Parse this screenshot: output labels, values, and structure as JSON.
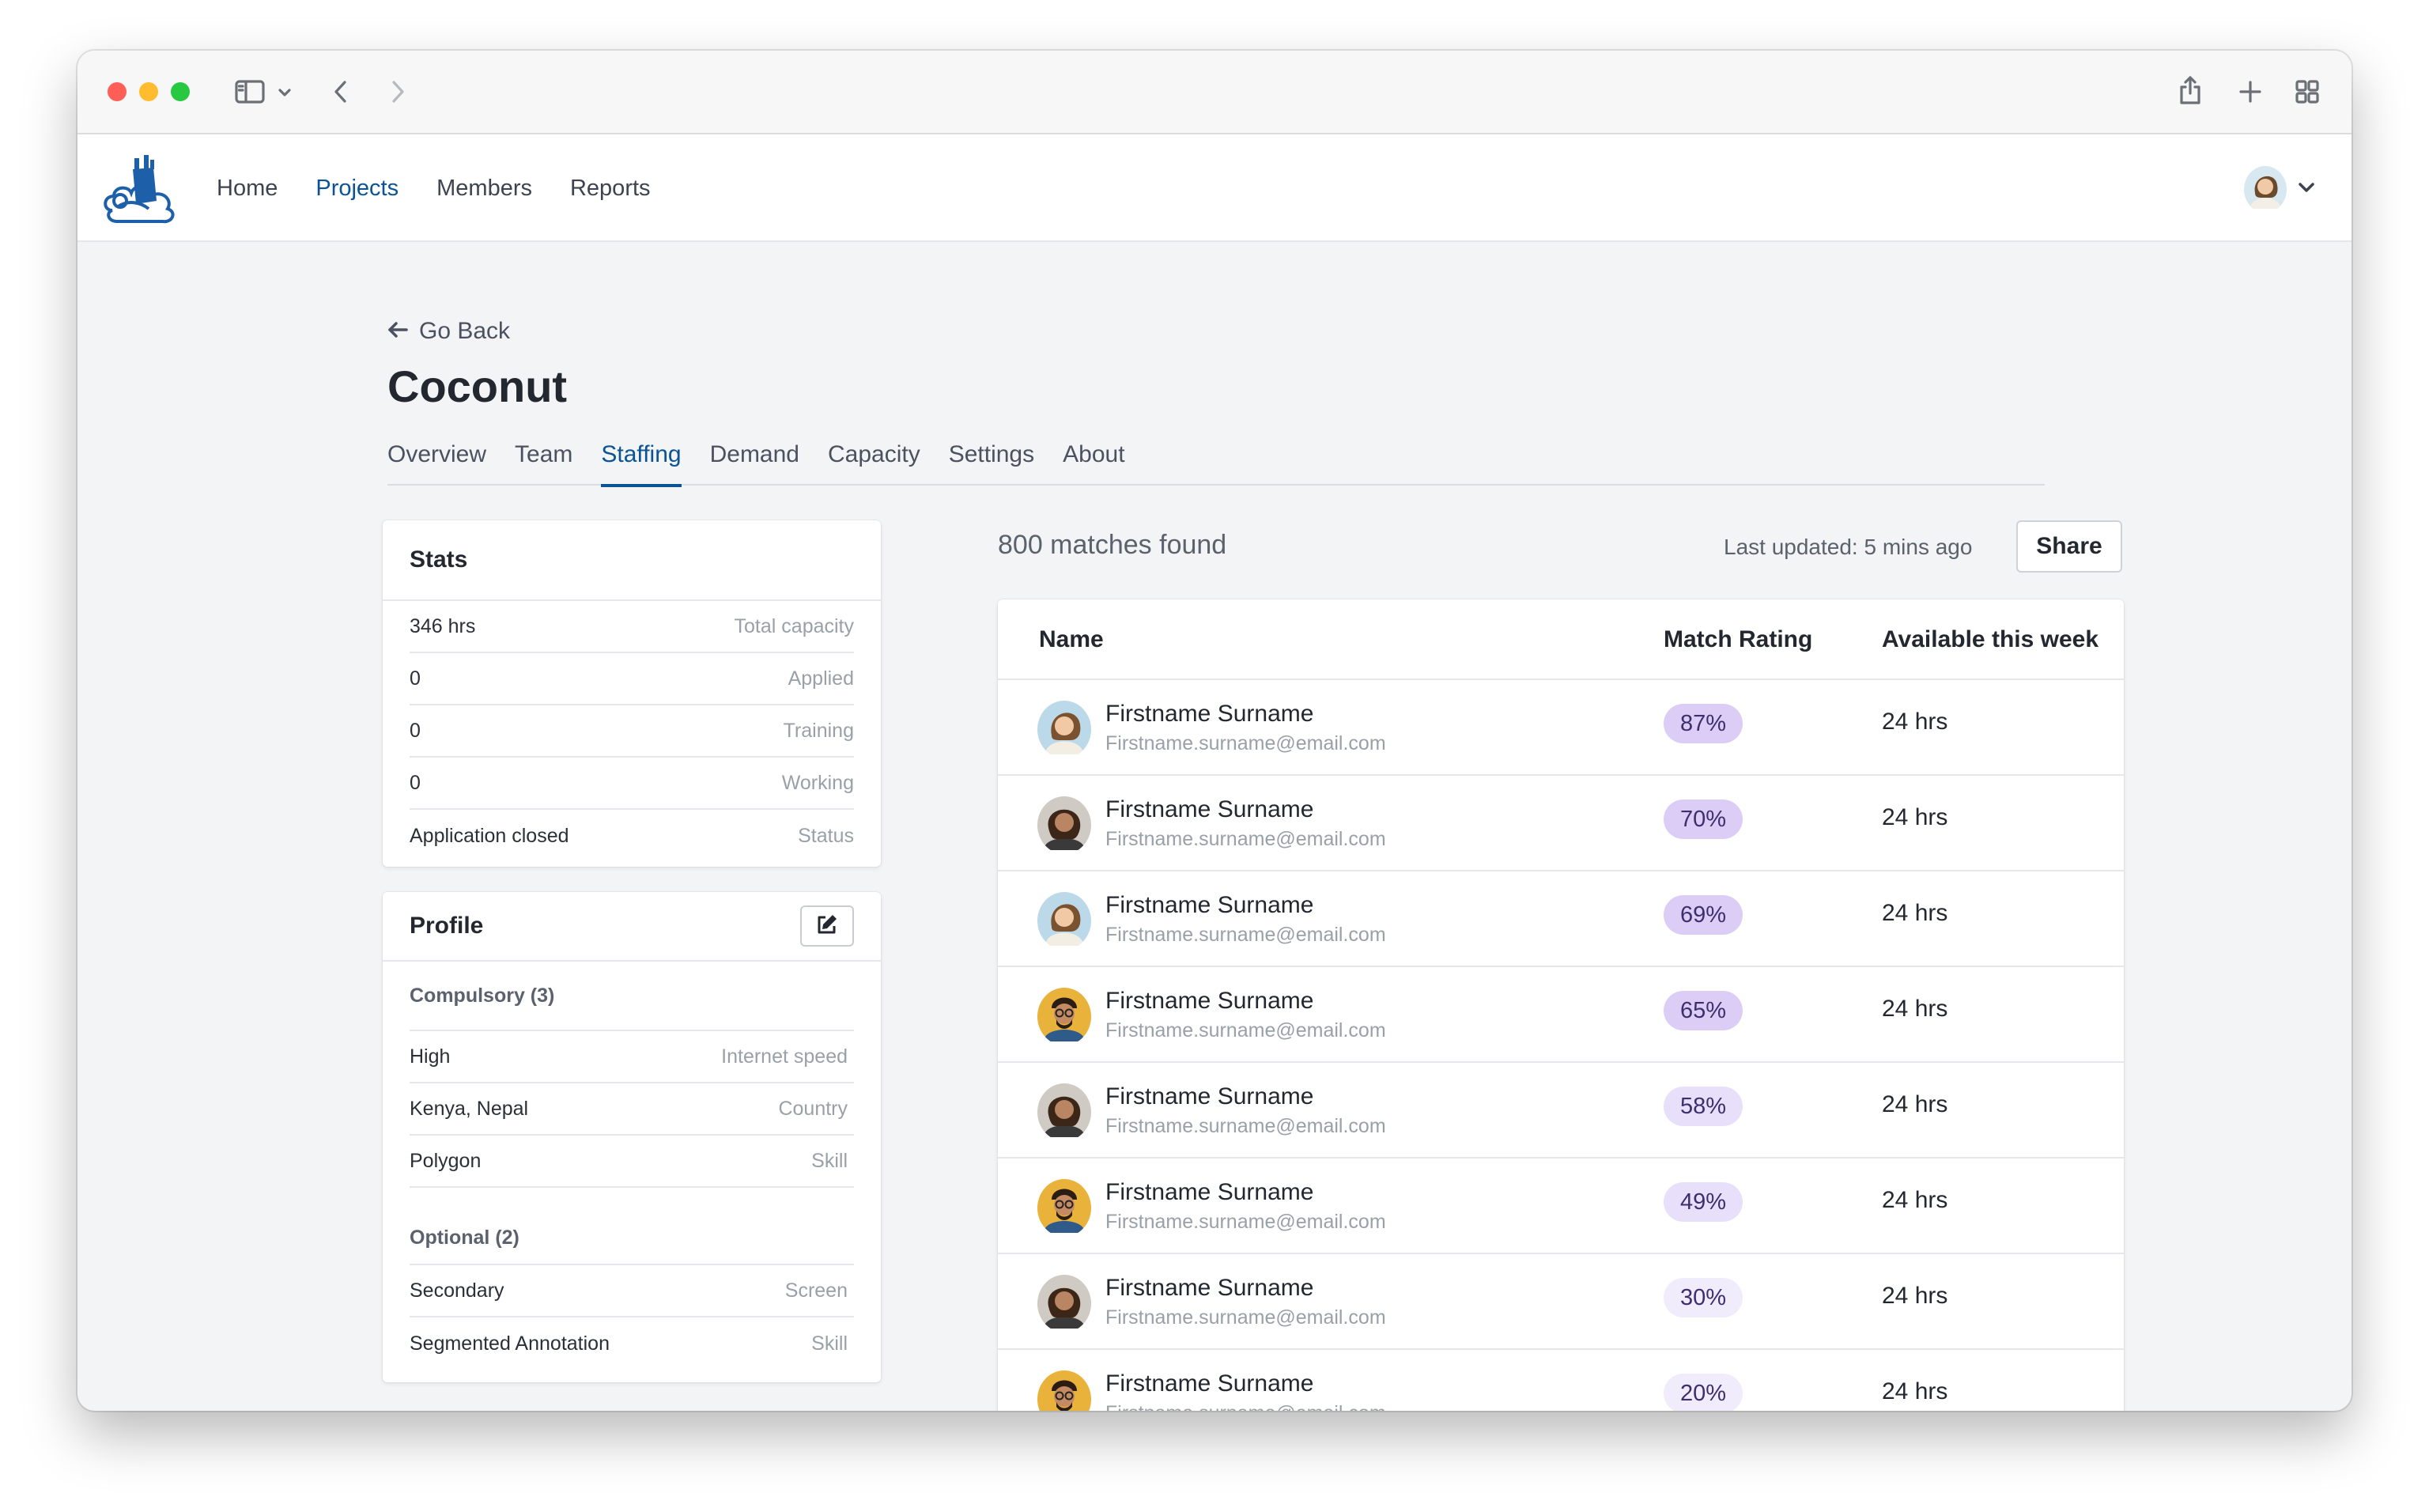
{
  "browser": {
    "icons": [
      "sidebar-icon",
      "chevron-down-icon",
      "back-arrow-icon",
      "forward-arrow-icon",
      "share-icon",
      "plus-icon",
      "tab-grid-icon"
    ]
  },
  "nav": {
    "links": [
      {
        "label": "Home",
        "active": false
      },
      {
        "label": "Projects",
        "active": true
      },
      {
        "label": "Members",
        "active": false
      },
      {
        "label": "Reports",
        "active": false
      }
    ]
  },
  "page": {
    "go_back": "Go Back",
    "title": "Coconut",
    "tabs": [
      {
        "label": "Overview",
        "active": false
      },
      {
        "label": "Team",
        "active": false
      },
      {
        "label": "Staffing",
        "active": true
      },
      {
        "label": "Demand",
        "active": false
      },
      {
        "label": "Capacity",
        "active": false
      },
      {
        "label": "Settings",
        "active": false
      },
      {
        "label": "About",
        "active": false
      }
    ]
  },
  "stats": {
    "title": "Stats",
    "rows": [
      {
        "value": "346 hrs",
        "label": "Total capacity"
      },
      {
        "value": "0",
        "label": "Applied"
      },
      {
        "value": "0",
        "label": "Training"
      },
      {
        "value": "0",
        "label": "Working"
      },
      {
        "value": "Application closed",
        "label": "Status"
      }
    ]
  },
  "profile": {
    "title": "Profile",
    "compulsory_label": "Compulsory (3)",
    "compulsory": [
      {
        "value": "High",
        "label": "Internet speed"
      },
      {
        "value": "Kenya, Nepal",
        "label": "Country"
      },
      {
        "value": "Polygon",
        "label": "Skill"
      }
    ],
    "optional_label": "Optional (2)",
    "optional": [
      {
        "value": "Secondary",
        "label": "Screen"
      },
      {
        "value": "Segmented Annotation",
        "label": "Skill"
      }
    ]
  },
  "results": {
    "matches": "800 matches found",
    "last_updated": "Last updated: 5 mins ago",
    "share": "Share",
    "headers": {
      "name": "Name",
      "match": "Match Rating",
      "available": "Available this week"
    },
    "rows": [
      {
        "name": "Firstname Surname",
        "email": "Firstname.surname@email.com",
        "match": "87%",
        "available": "24 hrs",
        "avatar": "woman"
      },
      {
        "name": "Firstname Surname",
        "email": "Firstname.surname@email.com",
        "match": "70%",
        "available": "24 hrs",
        "avatar": "man-curly"
      },
      {
        "name": "Firstname Surname",
        "email": "Firstname.surname@email.com",
        "match": "69%",
        "available": "24 hrs",
        "avatar": "woman"
      },
      {
        "name": "Firstname Surname",
        "email": "Firstname.surname@email.com",
        "match": "65%",
        "available": "24 hrs",
        "avatar": "man-glasses"
      },
      {
        "name": "Firstname Surname",
        "email": "Firstname.surname@email.com",
        "match": "58%",
        "available": "24 hrs",
        "avatar": "man-curly"
      },
      {
        "name": "Firstname Surname",
        "email": "Firstname.surname@email.com",
        "match": "49%",
        "available": "24 hrs",
        "avatar": "man-glasses"
      },
      {
        "name": "Firstname Surname",
        "email": "Firstname.surname@email.com",
        "match": "30%",
        "available": "24 hrs",
        "avatar": "man-curly"
      },
      {
        "name": "Firstname Surname",
        "email": "Firstname.surname@email.com",
        "match": "20%",
        "available": "24 hrs",
        "avatar": "man-glasses"
      }
    ]
  },
  "colors": {
    "accent": "#0b5394",
    "badge_high": "#dccdf6",
    "badge_low": "#f1ecfb"
  }
}
